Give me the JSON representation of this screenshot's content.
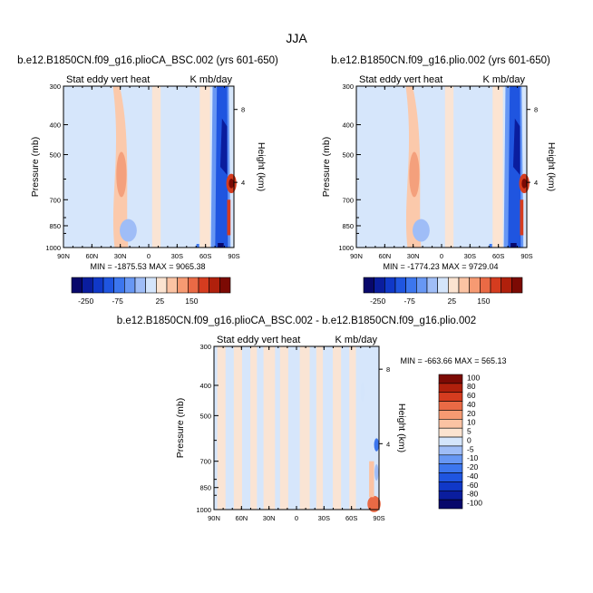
{
  "figure": {
    "title": "JJA",
    "panels": [
      {
        "case": "b.e12.B1850CN.f09_g16.plioCA_BSC.002 (yrs 601-650)",
        "left_label": "Stat eddy vert heat",
        "right_label": "K mb/day",
        "stats": "MIN = -1875.53   MAX = 9065.38"
      },
      {
        "case": "b.e12.B1850CN.f09_g16.plio.002 (yrs 601-650)",
        "left_label": "Stat eddy vert heat",
        "right_label": "K mb/day",
        "stats": "MIN = -1774.23   MAX = 9729.04"
      },
      {
        "case": "b.e12.B1850CN.f09_g16.plioCA_BSC.002 - b.e12.B1850CN.f09_g16.plio.002",
        "left_label": "Stat eddy vert heat",
        "right_label": "K mb/day",
        "stats": "MIN = -663.66   MAX = 565.13"
      }
    ],
    "top_colorbar_labels": [
      "-250",
      "-75",
      "25",
      "150"
    ],
    "diff_colorbar_labels": [
      "100",
      "80",
      "60",
      "40",
      "20",
      "10",
      "5",
      "0",
      "-5",
      "-10",
      "-20",
      "-40",
      "-60",
      "-80",
      "-100"
    ]
  },
  "chart_data": [
    {
      "type": "heatmap",
      "title": "b.e12.B1850CN.f09_g16.plioCA_BSC.002 (yrs 601-650)",
      "variable": "Stat eddy vert heat",
      "units": "K mb/day",
      "xlabel": "",
      "ylabel": "Pressure (mb)",
      "y2label": "Height (km)",
      "x_ticks": [
        "90N",
        "60N",
        "30N",
        "0",
        "30S",
        "60S",
        "90S"
      ],
      "y_ticks": [
        300,
        400,
        500,
        700,
        850,
        1000
      ],
      "y2_ticks": [
        8,
        4
      ],
      "ylim": [
        1000,
        300
      ],
      "min": -1875.53,
      "max": 9065.38,
      "colorbar_levels": [
        -250,
        -200,
        -150,
        -100,
        -75,
        -50,
        -25,
        0,
        25,
        50,
        75,
        100,
        150,
        200,
        250
      ]
    },
    {
      "type": "heatmap",
      "title": "b.e12.B1850CN.f09_g16.plio.002 (yrs 601-650)",
      "variable": "Stat eddy vert heat",
      "units": "K mb/day",
      "xlabel": "",
      "ylabel": "Pressure (mb)",
      "y2label": "Height (km)",
      "x_ticks": [
        "90N",
        "60N",
        "30N",
        "0",
        "30S",
        "60S",
        "90S"
      ],
      "y_ticks": [
        300,
        400,
        500,
        700,
        850,
        1000
      ],
      "y2_ticks": [
        8,
        4
      ],
      "ylim": [
        1000,
        300
      ],
      "min": -1774.23,
      "max": 9729.04,
      "colorbar_levels": [
        -250,
        -200,
        -150,
        -100,
        -75,
        -50,
        -25,
        0,
        25,
        50,
        75,
        100,
        150,
        200,
        250
      ]
    },
    {
      "type": "heatmap",
      "title": "b.e12.B1850CN.f09_g16.plioCA_BSC.002 - b.e12.B1850CN.f09_g16.plio.002",
      "variable": "Stat eddy vert heat",
      "units": "K mb/day",
      "xlabel": "",
      "ylabel": "Pressure (mb)",
      "y2label": "Height (km)",
      "x_ticks": [
        "90N",
        "60N",
        "30N",
        "0",
        "30S",
        "60S",
        "90S"
      ],
      "y_ticks": [
        300,
        400,
        500,
        700,
        850,
        1000
      ],
      "y2_ticks": [
        8,
        4
      ],
      "ylim": [
        1000,
        300
      ],
      "min": -663.66,
      "max": 565.13,
      "colorbar_levels": [
        -100,
        -80,
        -60,
        -40,
        -20,
        -10,
        -5,
        0,
        5,
        10,
        20,
        40,
        60,
        80,
        100
      ]
    }
  ]
}
